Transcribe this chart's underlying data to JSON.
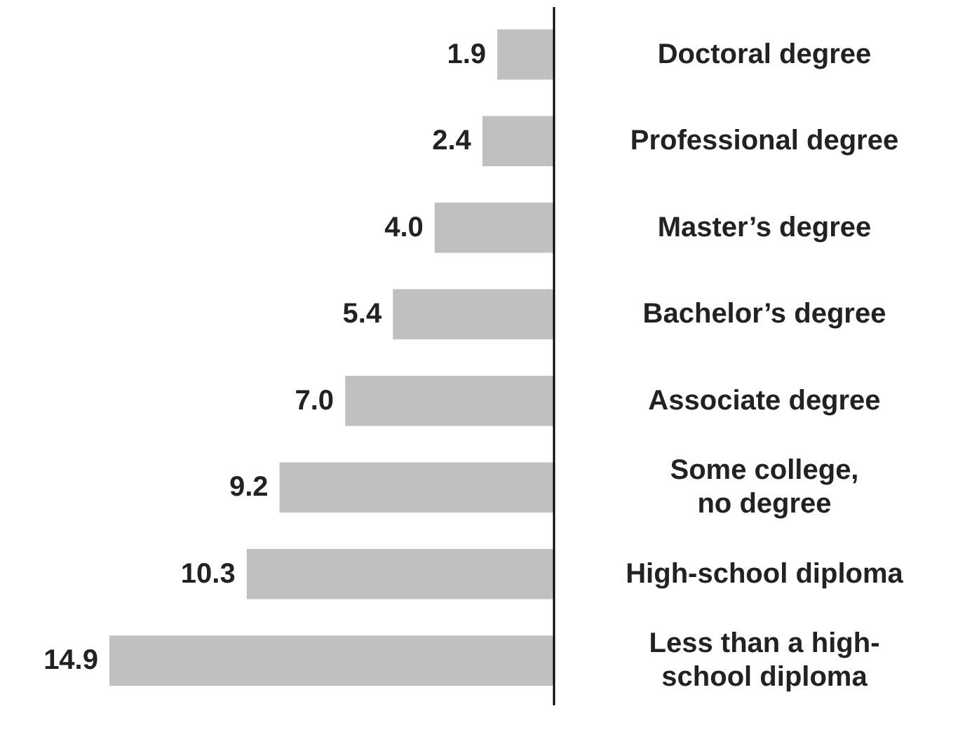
{
  "chart_data": {
    "type": "bar",
    "orientation": "horizontal",
    "categories": [
      "Doctoral degree",
      "Professional degree",
      "Master’s degree",
      "Bachelor’s degree",
      "Associate degree",
      "Some college, no degree",
      "High-school diploma",
      "Less than a high-school diploma"
    ],
    "values": [
      1.9,
      2.4,
      4.0,
      5.4,
      7.0,
      9.2,
      10.3,
      14.9
    ],
    "value_labels": [
      "1.9",
      "2.4",
      "4.0",
      "5.4",
      "7.0",
      "9.2",
      "10.3",
      "14.9"
    ],
    "color": "#c0c0c0",
    "xlim": [
      14.9,
      0
    ],
    "tick_labels": "y"
  }
}
